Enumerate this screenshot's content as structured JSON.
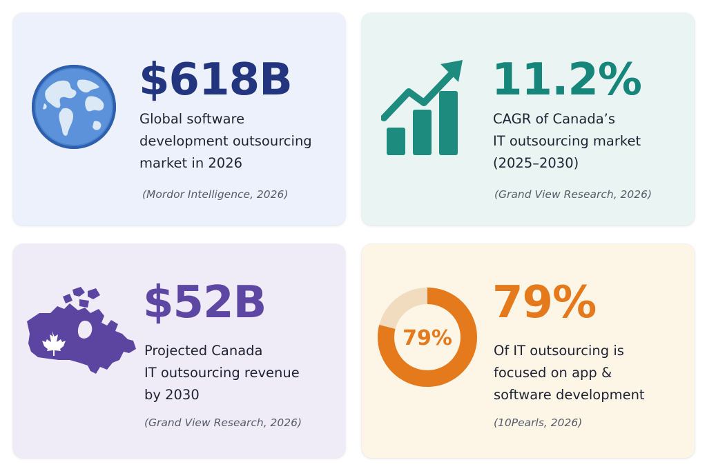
{
  "cards": [
    {
      "stat": "$618B",
      "description": "Global software\ndevelopment outsourcing\nmarket in 2026",
      "source": "(Mordor Intelligence, 2026)",
      "icon": "globe-icon",
      "accent_color": "#22357e"
    },
    {
      "stat": "11.2%",
      "description": "CAGR of Canada’s\nIT outsourcing market\n(2025–2030)",
      "source": "(Grand View Research, 2026)",
      "icon": "growth-chart-icon",
      "accent_color": "#16857a"
    },
    {
      "stat": "$52B",
      "description": "Projected Canada\nIT outsourcing revenue\nby 2030",
      "source": "(Grand View Research, 2026)",
      "icon": "canada-map-icon",
      "accent_color": "#5d47a2"
    },
    {
      "stat": "79%",
      "description": "Of IT outsourcing is\nfocused on app &\nsoftware development",
      "source": "(10Pearls, 2026)",
      "icon": "donut-chart-icon",
      "donut_label": "79%",
      "donut_fraction": 0.79,
      "accent_color": "#e47a1c"
    }
  ]
}
